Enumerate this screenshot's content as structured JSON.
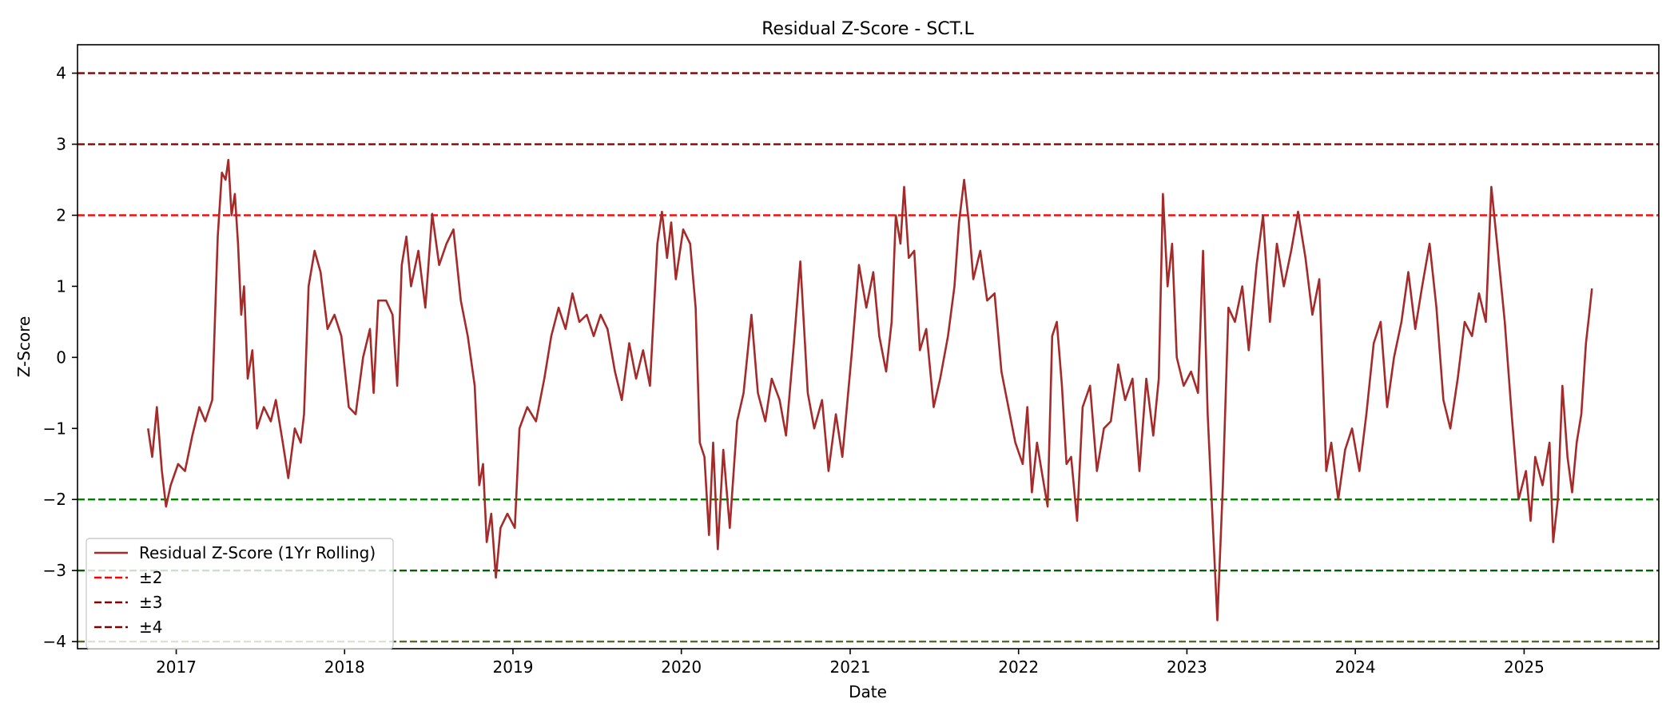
{
  "chart_data": {
    "type": "line",
    "title": "Residual Z-Score - SCT.L",
    "xlabel": "Date",
    "ylabel": "Z-Score",
    "xlim": [
      "2016-06-01",
      "2025-10-20"
    ],
    "ylim": [
      -4.1,
      4.4
    ],
    "grid": false,
    "legend_position": "lower-left",
    "x_ticks": [
      {
        "date": "2017-01-01",
        "label": "2017"
      },
      {
        "date": "2018-01-01",
        "label": "2018"
      },
      {
        "date": "2019-01-01",
        "label": "2019"
      },
      {
        "date": "2020-01-01",
        "label": "2020"
      },
      {
        "date": "2021-01-01",
        "label": "2021"
      },
      {
        "date": "2022-01-01",
        "label": "2022"
      },
      {
        "date": "2023-01-01",
        "label": "2023"
      },
      {
        "date": "2024-01-01",
        "label": "2024"
      },
      {
        "date": "2025-01-01",
        "label": "2025"
      }
    ],
    "y_ticks": [
      {
        "value": -4,
        "label": "−4"
      },
      {
        "value": -3,
        "label": "−3"
      },
      {
        "value": -2,
        "label": "−2"
      },
      {
        "value": -1,
        "label": "−1"
      },
      {
        "value": 0,
        "label": "0"
      },
      {
        "value": 1,
        "label": "1"
      },
      {
        "value": 2,
        "label": "2"
      },
      {
        "value": 3,
        "label": "3"
      },
      {
        "value": 4,
        "label": "4"
      }
    ],
    "series": [
      {
        "name": "Residual Z-Score (1Yr Rolling)",
        "color": "#a52a2a",
        "points": [
          [
            "2016-11-01",
            -1.0
          ],
          [
            "2016-11-10",
            -1.4
          ],
          [
            "2016-11-20",
            -0.7
          ],
          [
            "2016-12-01",
            -1.6
          ],
          [
            "2016-12-10",
            -2.1
          ],
          [
            "2016-12-20",
            -1.8
          ],
          [
            "2017-01-05",
            -1.5
          ],
          [
            "2017-01-20",
            -1.6
          ],
          [
            "2017-02-05",
            -1.1
          ],
          [
            "2017-02-20",
            -0.7
          ],
          [
            "2017-03-05",
            -0.9
          ],
          [
            "2017-03-20",
            -0.6
          ],
          [
            "2017-04-01",
            1.7
          ],
          [
            "2017-04-10",
            2.6
          ],
          [
            "2017-04-18",
            2.5
          ],
          [
            "2017-04-24",
            2.78
          ],
          [
            "2017-05-01",
            2.0
          ],
          [
            "2017-05-08",
            2.3
          ],
          [
            "2017-05-15",
            1.6
          ],
          [
            "2017-05-22",
            0.6
          ],
          [
            "2017-05-28",
            1.0
          ],
          [
            "2017-06-05",
            -0.3
          ],
          [
            "2017-06-15",
            0.1
          ],
          [
            "2017-06-25",
            -1.0
          ],
          [
            "2017-07-10",
            -0.7
          ],
          [
            "2017-07-25",
            -0.9
          ],
          [
            "2017-08-05",
            -0.6
          ],
          [
            "2017-08-20",
            -1.2
          ],
          [
            "2017-09-01",
            -1.7
          ],
          [
            "2017-09-15",
            -1.0
          ],
          [
            "2017-09-28",
            -1.2
          ],
          [
            "2017-10-05",
            -0.8
          ],
          [
            "2017-10-15",
            1.0
          ],
          [
            "2017-10-28",
            1.5
          ],
          [
            "2017-11-10",
            1.2
          ],
          [
            "2017-11-25",
            0.4
          ],
          [
            "2017-12-10",
            0.6
          ],
          [
            "2017-12-25",
            0.3
          ],
          [
            "2018-01-10",
            -0.7
          ],
          [
            "2018-01-25",
            -0.8
          ],
          [
            "2018-02-10",
            0.0
          ],
          [
            "2018-02-25",
            0.4
          ],
          [
            "2018-03-05",
            -0.5
          ],
          [
            "2018-03-15",
            0.8
          ],
          [
            "2018-04-01",
            0.8
          ],
          [
            "2018-04-15",
            0.6
          ],
          [
            "2018-04-25",
            -0.4
          ],
          [
            "2018-05-05",
            1.3
          ],
          [
            "2018-05-15",
            1.7
          ],
          [
            "2018-05-25",
            1.0
          ],
          [
            "2018-06-10",
            1.5
          ],
          [
            "2018-06-25",
            0.7
          ],
          [
            "2018-07-10",
            2.02
          ],
          [
            "2018-07-25",
            1.3
          ],
          [
            "2018-08-10",
            1.6
          ],
          [
            "2018-08-25",
            1.8
          ],
          [
            "2018-09-10",
            0.8
          ],
          [
            "2018-09-25",
            0.3
          ],
          [
            "2018-10-10",
            -0.4
          ],
          [
            "2018-10-20",
            -1.8
          ],
          [
            "2018-10-28",
            -1.5
          ],
          [
            "2018-11-05",
            -2.6
          ],
          [
            "2018-11-15",
            -2.2
          ],
          [
            "2018-11-25",
            -3.1
          ],
          [
            "2018-12-05",
            -2.4
          ],
          [
            "2018-12-20",
            -2.2
          ],
          [
            "2019-01-05",
            -2.4
          ],
          [
            "2019-01-15",
            -1.0
          ],
          [
            "2019-02-01",
            -0.7
          ],
          [
            "2019-02-20",
            -0.9
          ],
          [
            "2019-03-10",
            -0.3
          ],
          [
            "2019-03-25",
            0.3
          ],
          [
            "2019-04-10",
            0.7
          ],
          [
            "2019-04-25",
            0.4
          ],
          [
            "2019-05-10",
            0.9
          ],
          [
            "2019-05-25",
            0.5
          ],
          [
            "2019-06-10",
            0.6
          ],
          [
            "2019-06-25",
            0.3
          ],
          [
            "2019-07-10",
            0.6
          ],
          [
            "2019-07-25",
            0.4
          ],
          [
            "2019-08-10",
            -0.2
          ],
          [
            "2019-08-25",
            -0.6
          ],
          [
            "2019-09-10",
            0.2
          ],
          [
            "2019-09-25",
            -0.3
          ],
          [
            "2019-10-10",
            0.1
          ],
          [
            "2019-10-25",
            -0.4
          ],
          [
            "2019-11-10",
            1.6
          ],
          [
            "2019-11-20",
            2.05
          ],
          [
            "2019-12-01",
            1.4
          ],
          [
            "2019-12-10",
            1.9
          ],
          [
            "2019-12-20",
            1.1
          ],
          [
            "2020-01-05",
            1.8
          ],
          [
            "2020-01-20",
            1.6
          ],
          [
            "2020-02-01",
            0.7
          ],
          [
            "2020-02-10",
            -1.2
          ],
          [
            "2020-02-20",
            -1.4
          ],
          [
            "2020-03-01",
            -2.5
          ],
          [
            "2020-03-10",
            -1.2
          ],
          [
            "2020-03-20",
            -2.7
          ],
          [
            "2020-04-01",
            -1.3
          ],
          [
            "2020-04-15",
            -2.4
          ],
          [
            "2020-05-01",
            -0.9
          ],
          [
            "2020-05-15",
            -0.5
          ],
          [
            "2020-06-01",
            0.6
          ],
          [
            "2020-06-15",
            -0.5
          ],
          [
            "2020-07-01",
            -0.9
          ],
          [
            "2020-07-15",
            -0.3
          ],
          [
            "2020-08-01",
            -0.6
          ],
          [
            "2020-08-15",
            -1.1
          ],
          [
            "2020-09-01",
            0.2
          ],
          [
            "2020-09-15",
            1.35
          ],
          [
            "2020-10-01",
            -0.5
          ],
          [
            "2020-10-15",
            -1.0
          ],
          [
            "2020-11-01",
            -0.6
          ],
          [
            "2020-11-15",
            -1.6
          ],
          [
            "2020-12-01",
            -0.8
          ],
          [
            "2020-12-15",
            -1.4
          ],
          [
            "2021-01-05",
            0.1
          ],
          [
            "2021-01-20",
            1.3
          ],
          [
            "2021-02-05",
            0.7
          ],
          [
            "2021-02-20",
            1.2
          ],
          [
            "2021-03-05",
            0.3
          ],
          [
            "2021-03-20",
            -0.2
          ],
          [
            "2021-04-01",
            0.5
          ],
          [
            "2021-04-10",
            2.0
          ],
          [
            "2021-04-20",
            1.6
          ],
          [
            "2021-04-28",
            2.4
          ],
          [
            "2021-05-08",
            1.4
          ],
          [
            "2021-05-20",
            1.5
          ],
          [
            "2021-06-01",
            0.1
          ],
          [
            "2021-06-15",
            0.4
          ],
          [
            "2021-07-01",
            -0.7
          ],
          [
            "2021-07-15",
            -0.3
          ],
          [
            "2021-08-01",
            0.3
          ],
          [
            "2021-08-15",
            1.0
          ],
          [
            "2021-08-25",
            1.9
          ],
          [
            "2021-09-05",
            2.5
          ],
          [
            "2021-09-15",
            1.9
          ],
          [
            "2021-09-25",
            1.1
          ],
          [
            "2021-10-10",
            1.5
          ],
          [
            "2021-10-25",
            0.8
          ],
          [
            "2021-11-10",
            0.9
          ],
          [
            "2021-11-25",
            -0.2
          ],
          [
            "2021-12-10",
            -0.7
          ],
          [
            "2021-12-25",
            -1.2
          ],
          [
            "2022-01-10",
            -1.5
          ],
          [
            "2022-01-20",
            -0.7
          ],
          [
            "2022-01-30",
            -1.9
          ],
          [
            "2022-02-10",
            -1.2
          ],
          [
            "2022-02-20",
            -1.6
          ],
          [
            "2022-03-05",
            -2.1
          ],
          [
            "2022-03-15",
            0.3
          ],
          [
            "2022-03-25",
            0.5
          ],
          [
            "2022-04-05",
            -0.4
          ],
          [
            "2022-04-15",
            -1.5
          ],
          [
            "2022-04-25",
            -1.4
          ],
          [
            "2022-05-08",
            -2.3
          ],
          [
            "2022-05-20",
            -0.7
          ],
          [
            "2022-06-05",
            -0.4
          ],
          [
            "2022-06-20",
            -1.6
          ],
          [
            "2022-07-05",
            -1.0
          ],
          [
            "2022-07-20",
            -0.9
          ],
          [
            "2022-08-05",
            -0.1
          ],
          [
            "2022-08-20",
            -0.6
          ],
          [
            "2022-09-05",
            -0.3
          ],
          [
            "2022-09-20",
            -1.6
          ],
          [
            "2022-10-05",
            -0.3
          ],
          [
            "2022-10-20",
            -1.1
          ],
          [
            "2022-11-01",
            -0.3
          ],
          [
            "2022-11-10",
            2.3
          ],
          [
            "2022-11-20",
            1.0
          ],
          [
            "2022-11-30",
            1.6
          ],
          [
            "2022-12-10",
            0.0
          ],
          [
            "2022-12-25",
            -0.4
          ],
          [
            "2023-01-10",
            -0.2
          ],
          [
            "2023-01-25",
            -0.5
          ],
          [
            "2023-02-05",
            1.5
          ],
          [
            "2023-02-15",
            -0.8
          ],
          [
            "2023-02-25",
            -2.2
          ],
          [
            "2023-03-08",
            -3.7
          ],
          [
            "2023-03-20",
            -1.8
          ],
          [
            "2023-04-01",
            0.7
          ],
          [
            "2023-04-15",
            0.5
          ],
          [
            "2023-05-01",
            1.0
          ],
          [
            "2023-05-15",
            0.1
          ],
          [
            "2023-06-01",
            1.3
          ],
          [
            "2023-06-15",
            2.0
          ],
          [
            "2023-06-30",
            0.5
          ],
          [
            "2023-07-15",
            1.6
          ],
          [
            "2023-07-30",
            1.0
          ],
          [
            "2023-08-15",
            1.5
          ],
          [
            "2023-08-30",
            2.05
          ],
          [
            "2023-09-15",
            1.4
          ],
          [
            "2023-09-30",
            0.6
          ],
          [
            "2023-10-15",
            1.1
          ],
          [
            "2023-10-30",
            -1.6
          ],
          [
            "2023-11-10",
            -1.2
          ],
          [
            "2023-11-25",
            -2.0
          ],
          [
            "2023-12-10",
            -1.3
          ],
          [
            "2023-12-25",
            -1.0
          ],
          [
            "2024-01-10",
            -1.6
          ],
          [
            "2024-01-25",
            -0.8
          ],
          [
            "2024-02-10",
            0.2
          ],
          [
            "2024-02-25",
            0.5
          ],
          [
            "2024-03-10",
            -0.7
          ],
          [
            "2024-03-25",
            0.0
          ],
          [
            "2024-04-10",
            0.5
          ],
          [
            "2024-04-25",
            1.2
          ],
          [
            "2024-05-10",
            0.4
          ],
          [
            "2024-05-25",
            1.0
          ],
          [
            "2024-06-10",
            1.6
          ],
          [
            "2024-06-25",
            0.7
          ],
          [
            "2024-07-10",
            -0.6
          ],
          [
            "2024-07-25",
            -1.0
          ],
          [
            "2024-08-10",
            -0.3
          ],
          [
            "2024-08-25",
            0.5
          ],
          [
            "2024-09-10",
            0.3
          ],
          [
            "2024-09-25",
            0.9
          ],
          [
            "2024-10-10",
            0.5
          ],
          [
            "2024-10-22",
            2.4
          ],
          [
            "2024-11-05",
            1.5
          ],
          [
            "2024-11-20",
            0.5
          ],
          [
            "2024-12-05",
            -0.8
          ],
          [
            "2024-12-20",
            -2.0
          ],
          [
            "2025-01-05",
            -1.6
          ],
          [
            "2025-01-15",
            -2.3
          ],
          [
            "2025-01-25",
            -1.4
          ],
          [
            "2025-02-10",
            -1.8
          ],
          [
            "2025-02-25",
            -1.2
          ],
          [
            "2025-03-05",
            -2.6
          ],
          [
            "2025-03-15",
            -2.0
          ],
          [
            "2025-03-25",
            -0.4
          ],
          [
            "2025-04-05",
            -1.4
          ],
          [
            "2025-04-15",
            -1.9
          ],
          [
            "2025-04-25",
            -1.2
          ],
          [
            "2025-05-05",
            -0.8
          ],
          [
            "2025-05-15",
            0.2
          ],
          [
            "2025-05-22",
            0.6
          ],
          [
            "2025-05-28",
            0.97
          ]
        ]
      }
    ],
    "reference_lines": [
      {
        "value": 2,
        "color": "#ff0000",
        "legend": "±2"
      },
      {
        "value": -2,
        "color": "#008000"
      },
      {
        "value": 3,
        "color": "#8b0000",
        "legend": "±3"
      },
      {
        "value": -3,
        "color": "#006400"
      },
      {
        "value": 4,
        "color": "#800000",
        "legend": "±4"
      },
      {
        "value": -4,
        "color": "#556b2f"
      }
    ]
  }
}
